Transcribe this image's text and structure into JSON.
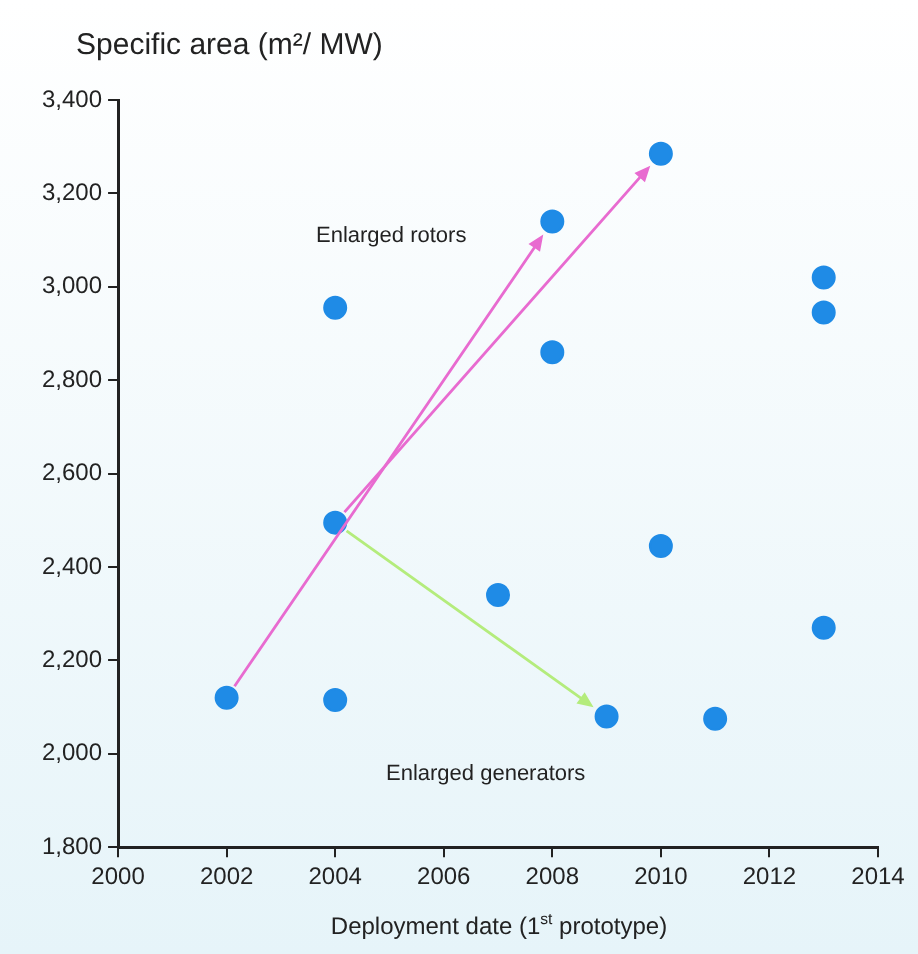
{
  "chart_data": {
    "type": "scatter",
    "ylabel": "Specific area (m²/ MW)",
    "xlabel": "Deployment date (1$^{st}$ prototype)",
    "x": [
      2002,
      2004,
      2004,
      2004,
      2007,
      2008,
      2008,
      2009,
      2010,
      2010,
      2011,
      2013,
      2013,
      2013
    ],
    "values": [
      2120,
      2955,
      2495,
      2115,
      2340,
      3140,
      2860,
      2080,
      3285,
      2445,
      2075,
      3020,
      2945,
      2270
    ],
    "color": "#1f8be6",
    "marker": "circle",
    "xlim": [
      2000,
      2014
    ],
    "xticks": [
      2000,
      2002,
      2004,
      2006,
      2008,
      2010,
      2012,
      2014
    ],
    "ylim": [
      1800,
      3400
    ],
    "yticks": [
      {
        "value": 1800,
        "label": "1,800"
      },
      {
        "value": 2000,
        "label": "2,000"
      },
      {
        "value": 2200,
        "label": "2,200"
      },
      {
        "value": 2400,
        "label": "2,400"
      },
      {
        "value": 2600,
        "label": "2,600"
      },
      {
        "value": 2800,
        "label": "2,800"
      },
      {
        "value": 3000,
        "label": "3,000"
      },
      {
        "value": 3200,
        "label": "3,200"
      },
      {
        "value": 3400,
        "label": "3,400"
      }
    ],
    "grid": false,
    "legend": false,
    "annotations": [
      "Enlarged rotors",
      "Enlarged generators"
    ]
  }
}
